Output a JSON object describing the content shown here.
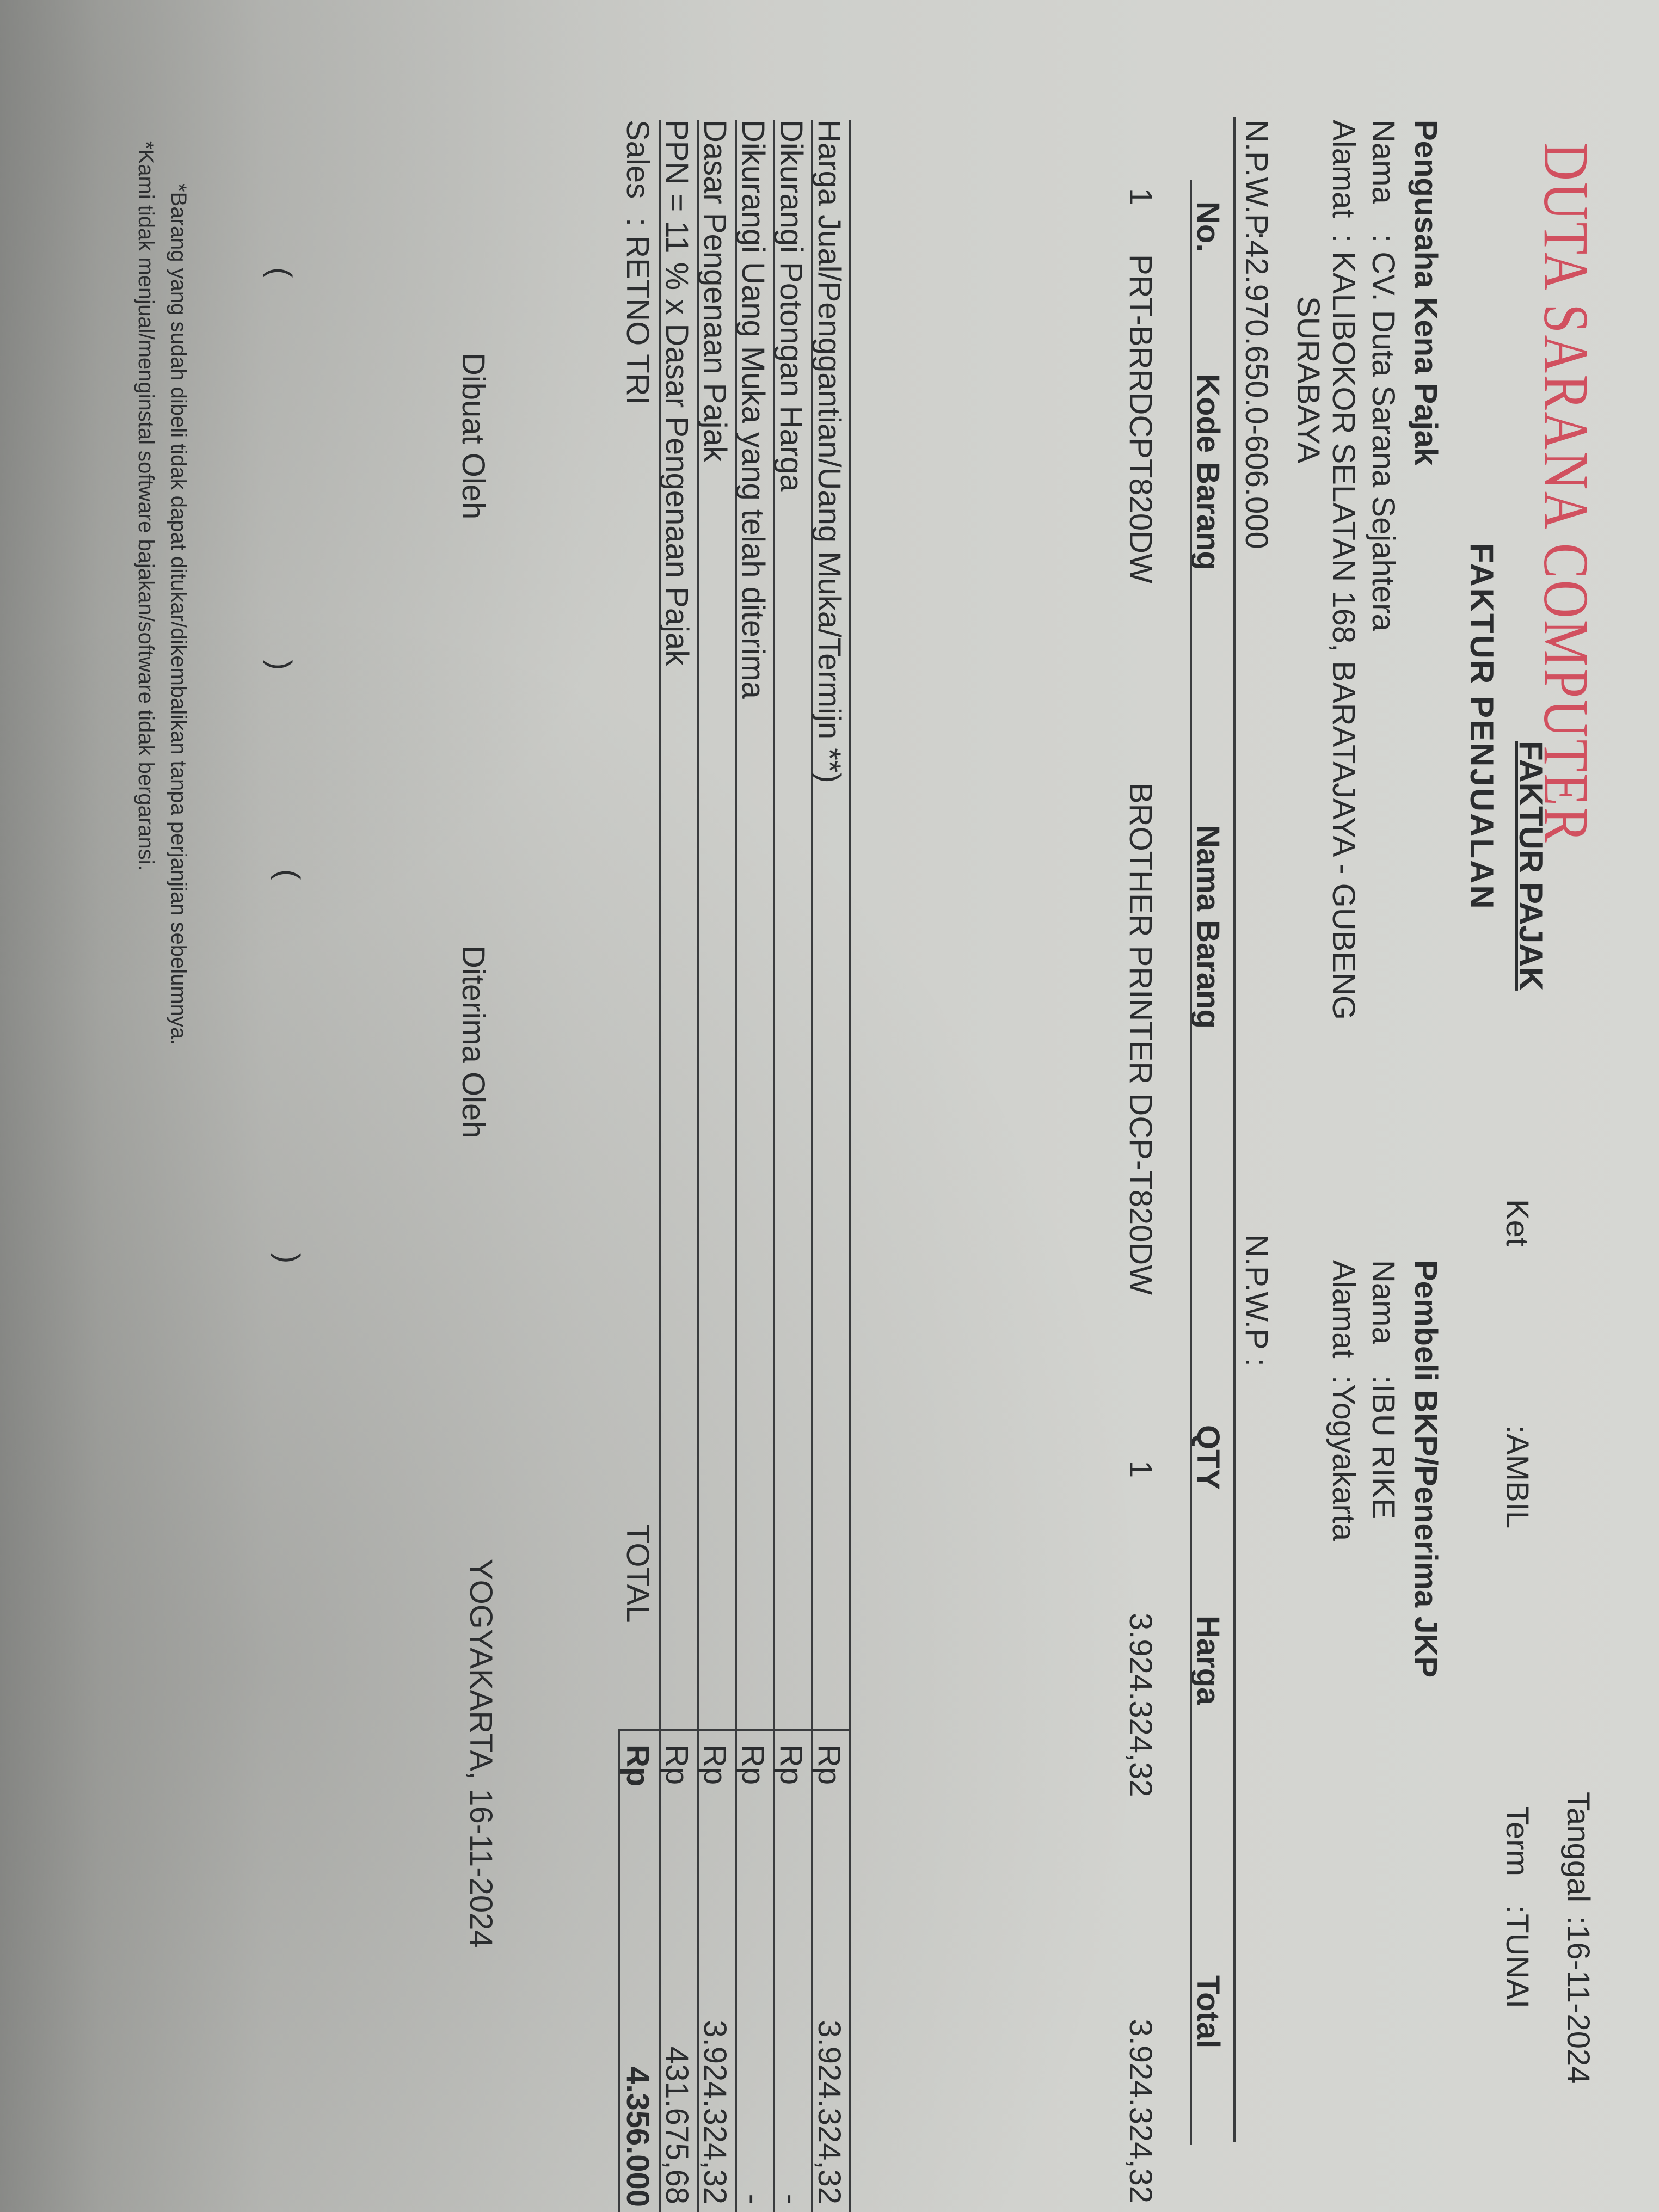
{
  "company": {
    "name": "DUTA SARANA COMPUTER",
    "brand_color": "#d1505f"
  },
  "document": {
    "title": "FAKTUR PAJAK",
    "subtitle": "FAKTUR PENJUALAN"
  },
  "meta": {
    "tanggal_label": "Tanggal",
    "tanggal_value": ":16-11-2024",
    "ket_label": "Ket",
    "ket_value": ":AMBIL",
    "term_label": "Term",
    "term_value": ":TUNAI"
  },
  "seller": {
    "heading": "Pengusaha Kena Pajak",
    "nama_label": "Nama",
    "nama_value": ": CV. Duta Sarana Sejahtera",
    "alamat_label": "Alamat",
    "alamat_value": ": KALIBOKOR SELATAN 168, BARATAJAYA - GUBENG",
    "alamat_line2": "SURABAYA",
    "npwp_label": "N.P.W.P",
    "npwp_value": ":42.970.650.0-606.000"
  },
  "buyer": {
    "heading": "Pembeli BKP/Penerima JKP",
    "nama_label": "Nama",
    "nama_value": ":IBU RIKE",
    "alamat_label": "Alamat",
    "alamat_value": ":Yogyakarta",
    "npwp_label": "N.P.W.P :"
  },
  "table": {
    "headers": [
      "No.",
      "Kode Barang",
      "Nama Barang",
      "QTY",
      "Harga",
      "Total"
    ],
    "rows": [
      {
        "no": "1",
        "kode": "PRT-BRRDCPT820DW",
        "nama": "BROTHER PRINTER DCP-T820DW",
        "qty": "1",
        "harga": "3.924.324,32",
        "total": "3.924.324,32"
      }
    ]
  },
  "summary": {
    "rows": [
      {
        "label": "Harga Jual/Penggantian/Uang Muka/Termijn **)",
        "currency": "Rp",
        "value": "3.924.324,32"
      },
      {
        "label": "Dikurangi Potongan Harga",
        "currency": "Rp",
        "value": "-"
      },
      {
        "label": "Dikurangi Uang Muka yang telah diterima",
        "currency": "Rp",
        "value": "-"
      },
      {
        "label": "Dasar Pengenaan Pajak",
        "currency": "Rp",
        "value": "3.924.324,32"
      },
      {
        "label": "PPN = 11 % x Dasar Pengenaan Pajak",
        "currency": "Rp",
        "value": "431.675,68"
      }
    ],
    "sales_label": "Sales",
    "sales_value": ": RETNO TRI",
    "total_label": "TOTAL",
    "total_currency": "Rp",
    "total_value": "4.356.000"
  },
  "signatures": {
    "made_by": "Dibuat Oleh",
    "received_by": "Diterima Oleh",
    "place_date": "YOGYAKARTA, 16-11-2024",
    "open_paren": "(",
    "close_paren": ")"
  },
  "notes": [
    "*Barang yang sudah dibeli tidak dapat ditukar/dikembalikan tanpa perjanjian sebelumnya.",
    "*Kami tidak menjual/menginstal software bajakan/software tidak bergaransi."
  ]
}
